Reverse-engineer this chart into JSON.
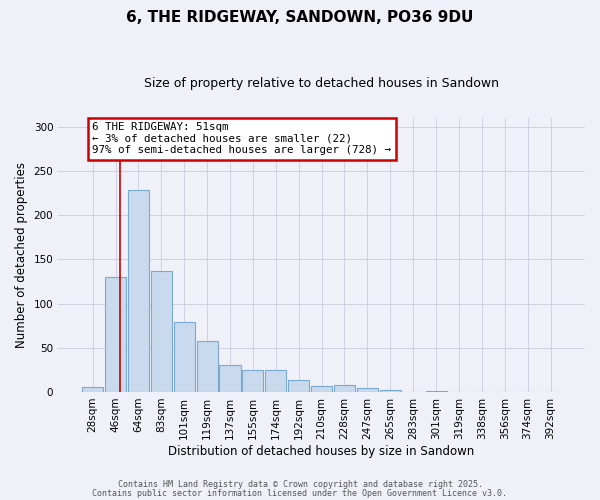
{
  "title": "6, THE RIDGEWAY, SANDOWN, PO36 9DU",
  "subtitle": "Size of property relative to detached houses in Sandown",
  "xlabel": "Distribution of detached houses by size in Sandown",
  "ylabel": "Number of detached properties",
  "bar_labels": [
    "28sqm",
    "46sqm",
    "64sqm",
    "83sqm",
    "101sqm",
    "119sqm",
    "137sqm",
    "155sqm",
    "174sqm",
    "192sqm",
    "210sqm",
    "228sqm",
    "247sqm",
    "265sqm",
    "283sqm",
    "301sqm",
    "319sqm",
    "338sqm",
    "356sqm",
    "374sqm",
    "392sqm"
  ],
  "bar_values": [
    6,
    130,
    229,
    137,
    79,
    58,
    31,
    25,
    25,
    13,
    7,
    8,
    5,
    2,
    0,
    1,
    0,
    0,
    0,
    0,
    0
  ],
  "bar_color": "#c9d9ee",
  "bar_edge_color": "#7aaad0",
  "property_line_x": 1.18,
  "property_line_color": "#cc0000",
  "ylim": [
    0,
    310
  ],
  "yticks": [
    0,
    50,
    100,
    150,
    200,
    250,
    300
  ],
  "annotation_title": "6 THE RIDGEWAY: 51sqm",
  "annotation_line1": "← 3% of detached houses are smaller (22)",
  "annotation_line2": "97% of semi-detached houses are larger (728) →",
  "annotation_box_edgecolor": "#cc0000",
  "footer_line1": "Contains HM Land Registry data © Crown copyright and database right 2025.",
  "footer_line2": "Contains public sector information licensed under the Open Government Licence v3.0.",
  "background_color": "#f0f0f8",
  "grid_color": "#d0d0e0",
  "title_fontsize": 11,
  "subtitle_fontsize": 9,
  "tick_fontsize": 7.5,
  "axis_label_fontsize": 8.5
}
